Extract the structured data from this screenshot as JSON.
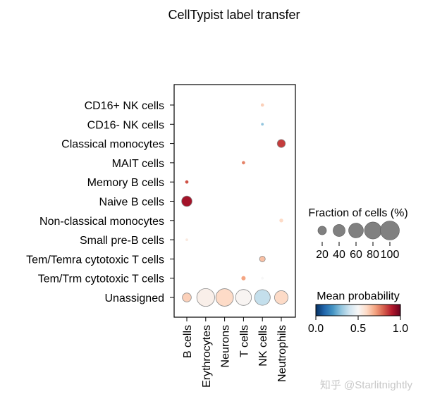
{
  "chart_data": {
    "type": "dotplot",
    "title": "CellTypist label transfer",
    "rows": [
      "CD16+ NK cells",
      "CD16- NK cells",
      "Classical monocytes",
      "MAIT cells",
      "Memory B cells",
      "Naive B cells",
      "Non-classical monocytes",
      "Small pre-B cells",
      "Tem/Temra cytotoxic T cells",
      "Tem/Trm cytotoxic T cells",
      "Unassigned"
    ],
    "columns": [
      "B cells",
      "Erythrocytes",
      "Neurons",
      "T cells",
      "NK cells",
      "Neutrophils"
    ],
    "points": [
      {
        "row": "CD16+ NK cells",
        "col": "NK cells",
        "fraction": 3,
        "probability": 0.62
      },
      {
        "row": "CD16- NK cells",
        "col": "NK cells",
        "fraction": 2,
        "probability": 0.3
      },
      {
        "row": "Classical monocytes",
        "col": "Neutrophils",
        "fraction": 18,
        "probability": 0.85
      },
      {
        "row": "MAIT cells",
        "col": "T cells",
        "fraction": 3,
        "probability": 0.75
      },
      {
        "row": "Memory B cells",
        "col": "B cells",
        "fraction": 3,
        "probability": 0.82
      },
      {
        "row": "Naive B cells",
        "col": "B cells",
        "fraction": 30,
        "probability": 0.92
      },
      {
        "row": "Non-classical monocytes",
        "col": "Neutrophils",
        "fraction": 4,
        "probability": 0.6
      },
      {
        "row": "Small pre-B cells",
        "col": "B cells",
        "fraction": 2,
        "probability": 0.55
      },
      {
        "row": "Tem/Temra cytotoxic T cells",
        "col": "NK cells",
        "fraction": 9,
        "probability": 0.65
      },
      {
        "row": "Tem/Trm cytotoxic T cells",
        "col": "T cells",
        "fraction": 5,
        "probability": 0.7
      },
      {
        "row": "Tem/Trm cytotoxic T cells",
        "col": "NK cells",
        "fraction": 2,
        "probability": 0.5
      },
      {
        "row": "Unassigned",
        "col": "B cells",
        "fraction": 22,
        "probability": 0.62
      },
      {
        "row": "Unassigned",
        "col": "Erythrocytes",
        "fraction": 88,
        "probability": 0.53
      },
      {
        "row": "Unassigned",
        "col": "Neurons",
        "fraction": 85,
        "probability": 0.6
      },
      {
        "row": "Unassigned",
        "col": "T cells",
        "fraction": 70,
        "probability": 0.51
      },
      {
        "row": "Unassigned",
        "col": "NK cells",
        "fraction": 68,
        "probability": 0.38
      },
      {
        "row": "Unassigned",
        "col": "Neutrophils",
        "fraction": 50,
        "probability": 0.6
      }
    ],
    "size_legend": {
      "title": "Fraction of cells (%)",
      "values": [
        20,
        40,
        60,
        80,
        100
      ],
      "labels": [
        "20",
        "40",
        "60",
        "80",
        "100"
      ]
    },
    "color_legend": {
      "title": "Mean probability",
      "colormap": "RdBu_r",
      "range": [
        0.0,
        1.0
      ],
      "tick_values": [
        0.0,
        0.5,
        1.0
      ],
      "tick_labels": [
        "0.0",
        "0.5",
        "1.0"
      ]
    }
  },
  "watermark": "知乎 @Starlitnightly",
  "colors": {
    "low": "#053061",
    "mid": "#f7f7f7",
    "high": "#67001f",
    "size_legend_fill": "#808080"
  }
}
